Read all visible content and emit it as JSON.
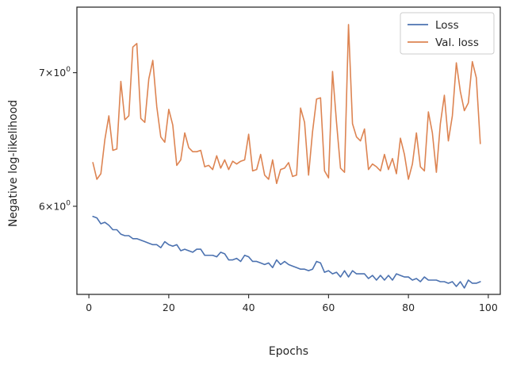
{
  "chart_data": {
    "type": "line",
    "xlabel": "Epochs",
    "ylabel": "Negative log-likelihood",
    "yscale": "log",
    "xlim": [
      -3,
      103
    ],
    "ylim": [
      5.42,
      7.55
    ],
    "grid": false,
    "legend_position": "top-right",
    "xticks": [
      {
        "value": 0,
        "label": "0"
      },
      {
        "value": 20,
        "label": "20"
      },
      {
        "value": 40,
        "label": "40"
      },
      {
        "value": 60,
        "label": "60"
      },
      {
        "value": 80,
        "label": "80"
      },
      {
        "value": 100,
        "label": "100"
      }
    ],
    "yticks": [
      {
        "value": 6,
        "base": "6",
        "mult": "×",
        "exp_base": "10",
        "exp": "0"
      },
      {
        "value": 7,
        "base": "7",
        "mult": "×",
        "exp_base": "10",
        "exp": "0"
      }
    ],
    "x": [
      1,
      2,
      3,
      4,
      5,
      6,
      7,
      8,
      9,
      10,
      11,
      12,
      13,
      14,
      15,
      16,
      17,
      18,
      19,
      20,
      21,
      22,
      23,
      24,
      25,
      26,
      27,
      28,
      29,
      30,
      31,
      32,
      33,
      34,
      35,
      36,
      37,
      38,
      39,
      40,
      41,
      42,
      43,
      44,
      45,
      46,
      47,
      48,
      49,
      50,
      51,
      52,
      53,
      54,
      55,
      56,
      57,
      58,
      59,
      60,
      61,
      62,
      63,
      64,
      65,
      66,
      67,
      68,
      69,
      70,
      71,
      72,
      73,
      74,
      75,
      76,
      77,
      78,
      79,
      80,
      81,
      82,
      83,
      84,
      85,
      86,
      87,
      88,
      89,
      90,
      91,
      92,
      93,
      94,
      95,
      96,
      97,
      98
    ],
    "series": [
      {
        "name": "Loss",
        "color": "#4c72b0",
        "values": [
          5.93,
          5.92,
          5.88,
          5.89,
          5.87,
          5.84,
          5.84,
          5.81,
          5.8,
          5.8,
          5.78,
          5.78,
          5.77,
          5.76,
          5.75,
          5.74,
          5.74,
          5.72,
          5.76,
          5.74,
          5.73,
          5.74,
          5.7,
          5.71,
          5.7,
          5.69,
          5.71,
          5.71,
          5.67,
          5.67,
          5.67,
          5.66,
          5.69,
          5.68,
          5.64,
          5.64,
          5.65,
          5.63,
          5.67,
          5.66,
          5.63,
          5.63,
          5.62,
          5.61,
          5.62,
          5.59,
          5.64,
          5.61,
          5.63,
          5.61,
          5.6,
          5.59,
          5.58,
          5.58,
          5.57,
          5.58,
          5.63,
          5.62,
          5.56,
          5.57,
          5.55,
          5.56,
          5.53,
          5.57,
          5.53,
          5.57,
          5.55,
          5.55,
          5.55,
          5.52,
          5.54,
          5.51,
          5.54,
          5.51,
          5.54,
          5.51,
          5.55,
          5.54,
          5.53,
          5.53,
          5.51,
          5.52,
          5.5,
          5.53,
          5.51,
          5.51,
          5.51,
          5.5,
          5.5,
          5.49,
          5.5,
          5.47,
          5.5,
          5.46,
          5.51,
          5.49,
          5.49,
          5.5
        ]
      },
      {
        "name": "Val. loss",
        "color": "#dd8452",
        "values": [
          6.31,
          6.19,
          6.23,
          6.48,
          6.66,
          6.4,
          6.41,
          6.93,
          6.63,
          6.66,
          7.21,
          7.24,
          6.64,
          6.61,
          6.95,
          7.1,
          6.73,
          6.5,
          6.46,
          6.71,
          6.59,
          6.29,
          6.33,
          6.53,
          6.42,
          6.39,
          6.39,
          6.4,
          6.28,
          6.29,
          6.26,
          6.36,
          6.27,
          6.33,
          6.26,
          6.32,
          6.3,
          6.32,
          6.33,
          6.52,
          6.25,
          6.26,
          6.37,
          6.22,
          6.19,
          6.33,
          6.16,
          6.26,
          6.27,
          6.31,
          6.21,
          6.22,
          6.72,
          6.61,
          6.22,
          6.54,
          6.79,
          6.8,
          6.25,
          6.2,
          7.01,
          6.61,
          6.27,
          6.24,
          7.4,
          6.6,
          6.5,
          6.47,
          6.56,
          6.26,
          6.3,
          6.28,
          6.25,
          6.37,
          6.26,
          6.34,
          6.23,
          6.49,
          6.37,
          6.19,
          6.3,
          6.53,
          6.28,
          6.25,
          6.69,
          6.53,
          6.24,
          6.6,
          6.82,
          6.47,
          6.66,
          7.08,
          6.85,
          6.7,
          6.76,
          7.09,
          6.96,
          6.45
        ]
      }
    ]
  }
}
